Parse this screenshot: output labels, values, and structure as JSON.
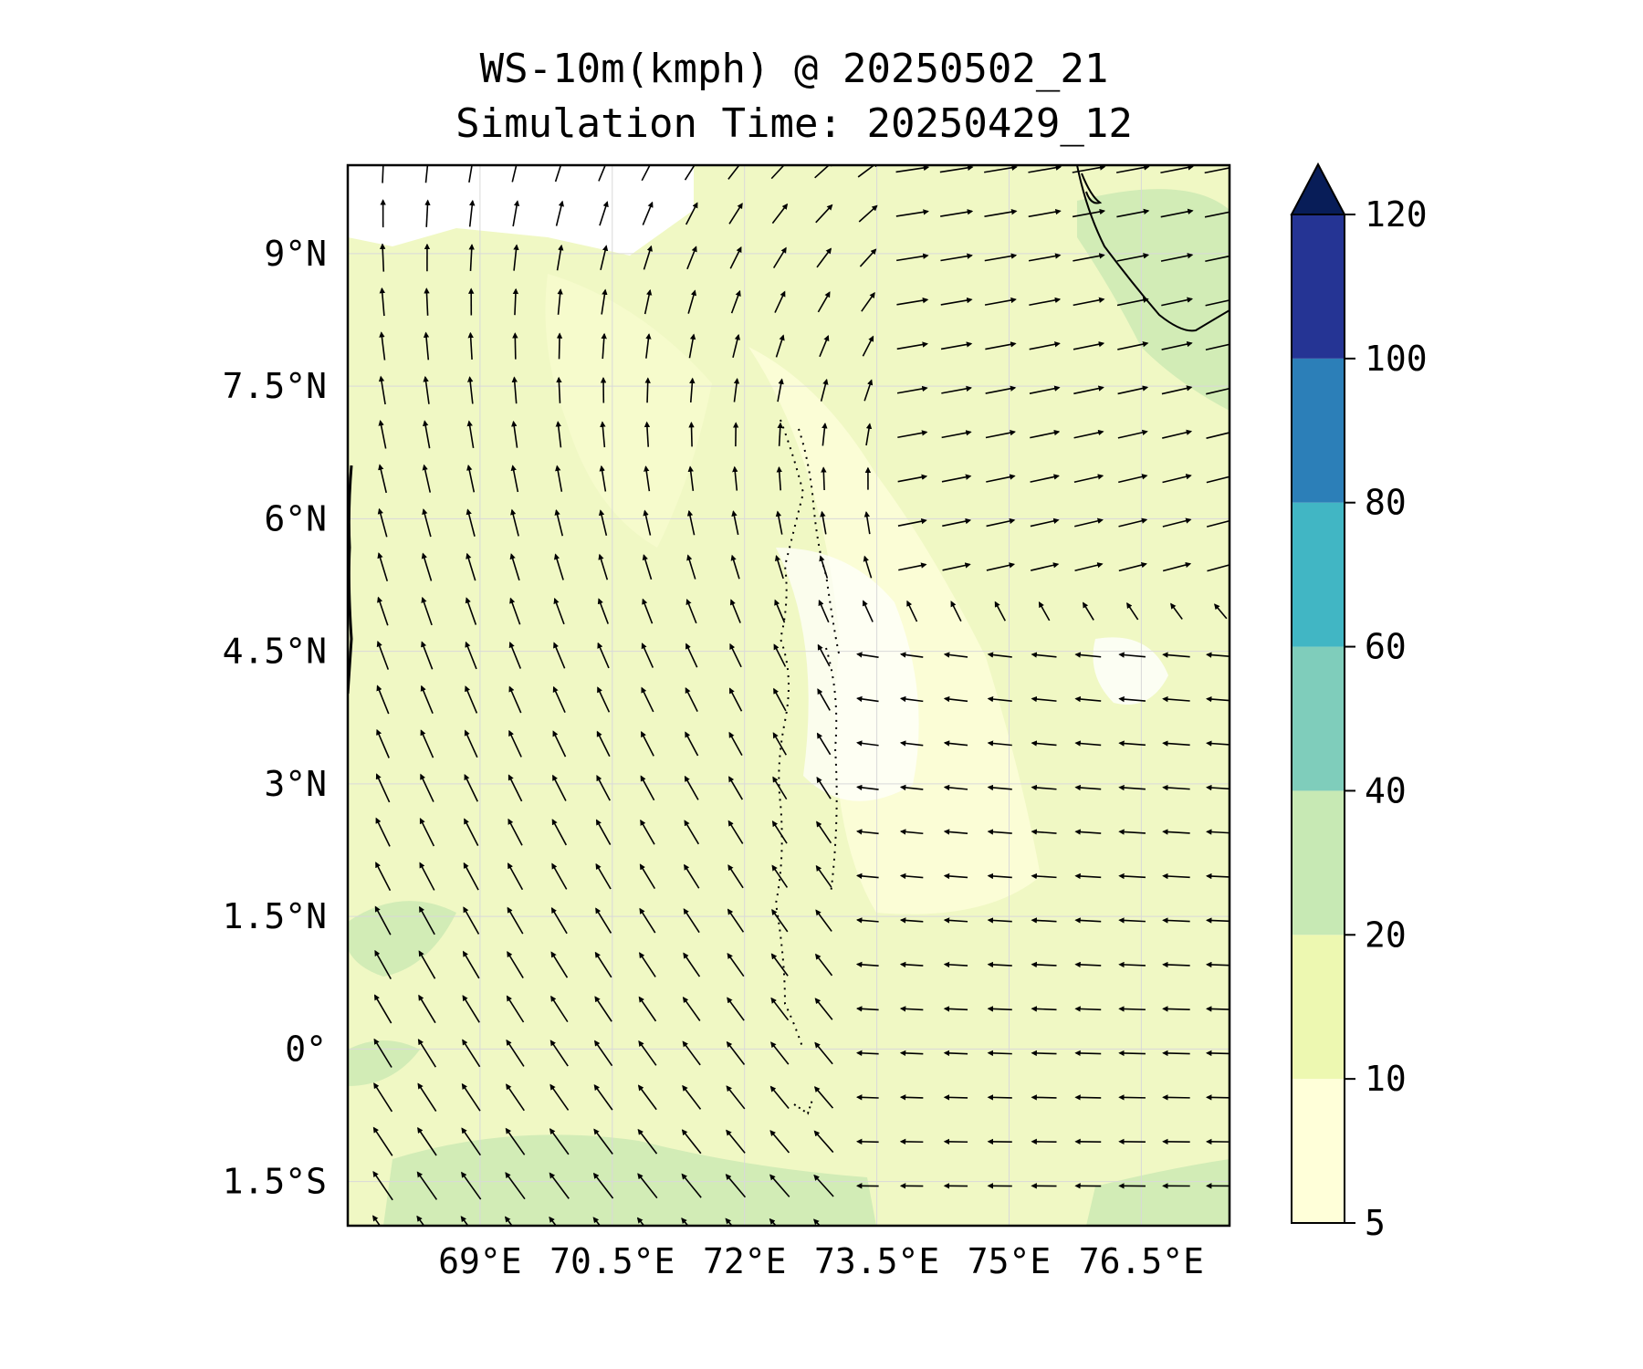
{
  "title": {
    "line1": "WS-10m(kmph) @ 20250502_21",
    "line2": "Simulation Time: 20250429_12"
  },
  "map": {
    "lon_range": [
      67.5,
      77.5
    ],
    "lat_range": [
      -2.0,
      10.0
    ],
    "x_ticks": [
      {
        "value": 69.0,
        "label": "69°E"
      },
      {
        "value": 70.5,
        "label": "70.5°E"
      },
      {
        "value": 72.0,
        "label": "72°E"
      },
      {
        "value": 73.5,
        "label": "73.5°E"
      },
      {
        "value": 75.0,
        "label": "75°E"
      },
      {
        "value": 76.5,
        "label": "76.5°E"
      }
    ],
    "y_ticks": [
      {
        "value": 9.0,
        "label": "9°N"
      },
      {
        "value": 7.5,
        "label": "7.5°N"
      },
      {
        "value": 6.0,
        "label": "6°N"
      },
      {
        "value": 4.5,
        "label": "4.5°N"
      },
      {
        "value": 3.0,
        "label": "3°N"
      },
      {
        "value": 1.5,
        "label": "1.5°N"
      },
      {
        "value": 0.0,
        "label": "0°"
      },
      {
        "value": -1.5,
        "label": "1.5°S"
      }
    ],
    "gridlines": true,
    "wind_field": "vector arrows, southeasterly/southerly flow in south and west, westerly/southwesterly near India-Sri Lanka coast",
    "background_level": "5-20 kmph"
  },
  "colorbar": {
    "levels": [
      "5",
      "10",
      "20",
      "40",
      "60",
      "80",
      "100",
      "120"
    ],
    "colors": [
      "#ffffd9",
      "#edf8b1",
      "#c7e9b4",
      "#7fcdbb",
      "#41b6c4",
      "#2c7fb8",
      "#253494",
      "#081d58"
    ],
    "extend": "max"
  }
}
